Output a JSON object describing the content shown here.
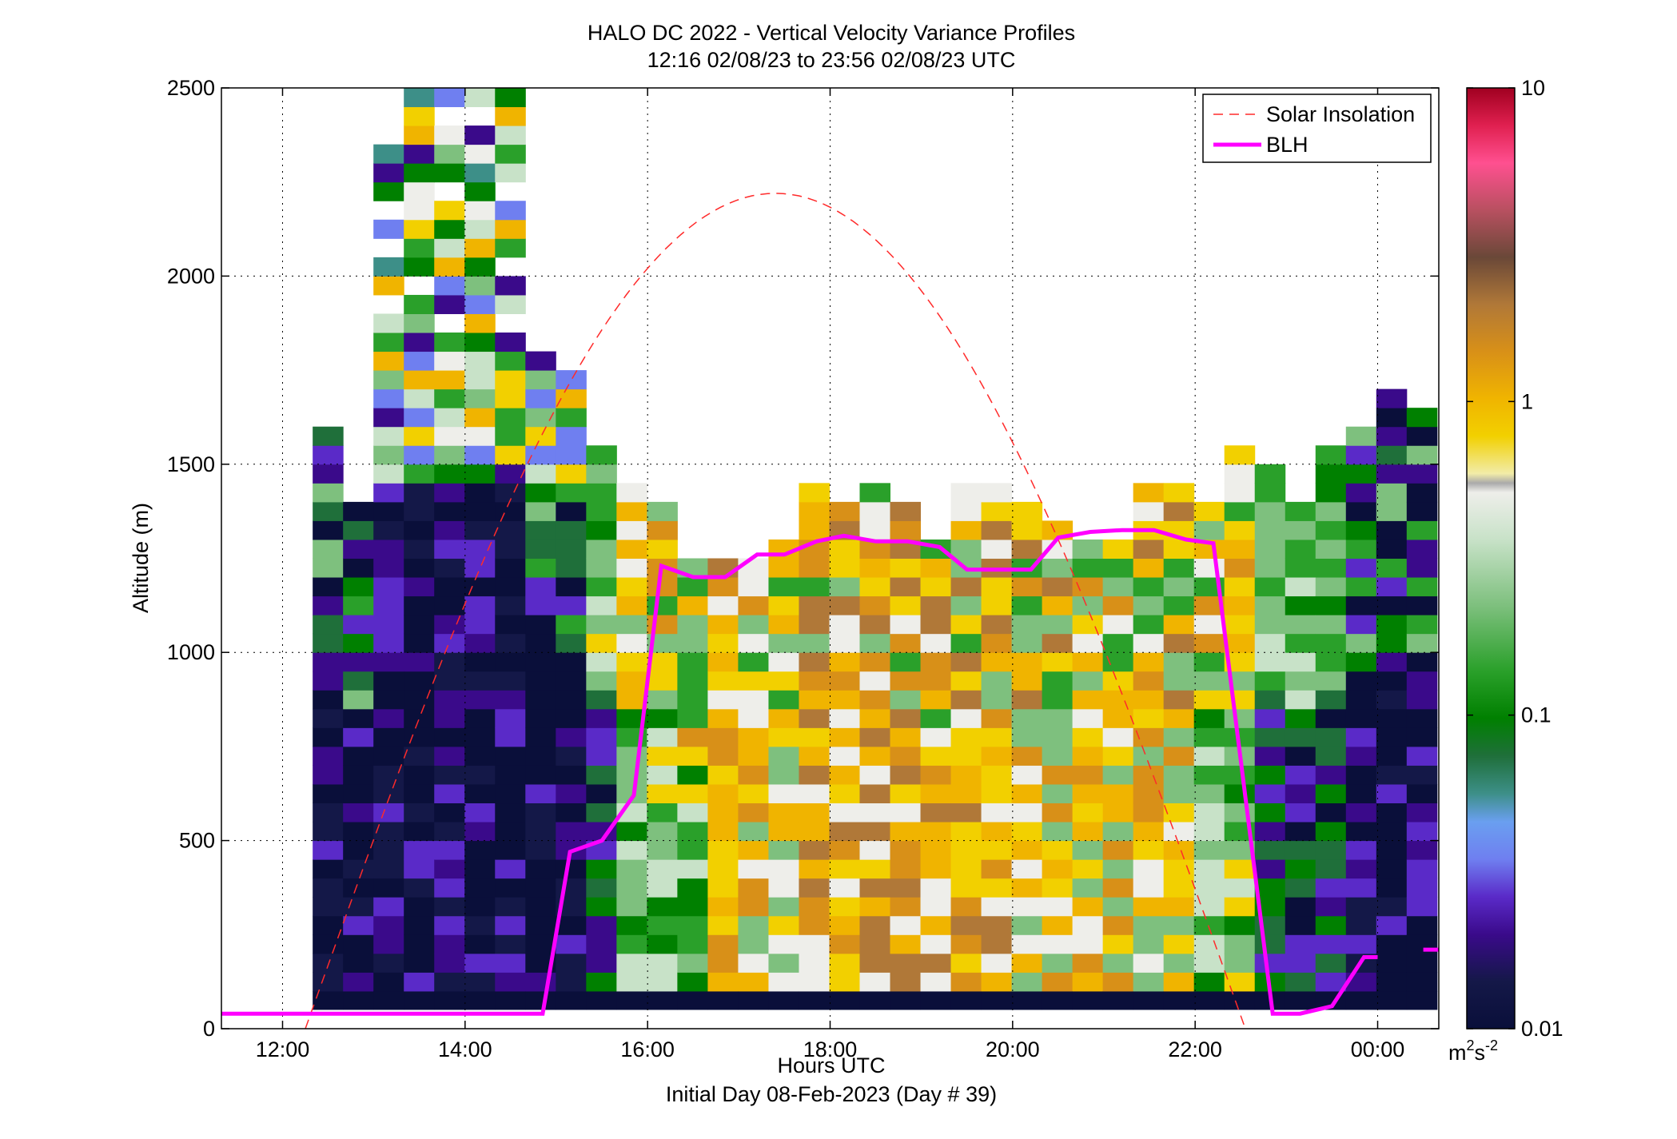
{
  "title_line1": "HALO DC 2022 - Vertical Velocity Variance Profiles",
  "title_line2": "12:16 02/08/23 to 23:56 02/08/23  UTC",
  "xlabel": "Hours UTC",
  "subtitle": "Initial Day 08-Feb-2023 (Day # 39)",
  "ylabel": "Altitude (m)",
  "colorbar_unit_base": "m",
  "colorbar_unit_sup1": "2",
  "colorbar_unit_mid": "s",
  "colorbar_unit_sup2": "-2",
  "legend": {
    "solar": "Solar Insolation",
    "blh": "BLH",
    "solar_color": "#ff2a2a",
    "blh_color": "#ff00ff"
  },
  "chart_data": {
    "type": "heatmap",
    "x_axis": {
      "label": "Hours UTC",
      "range_hours": [
        11.33,
        24.67
      ],
      "ticks": [
        {
          "value": 12,
          "label": "12:00"
        },
        {
          "value": 14,
          "label": "14:00"
        },
        {
          "value": 16,
          "label": "16:00"
        },
        {
          "value": 18,
          "label": "18:00"
        },
        {
          "value": 20,
          "label": "20:00"
        },
        {
          "value": 22,
          "label": "22:00"
        },
        {
          "value": 24,
          "label": "00:00"
        }
      ],
      "grid": true
    },
    "y_axis": {
      "label": "Altitude (m)",
      "range": [
        0,
        2500
      ],
      "ticks": [
        {
          "value": 0,
          "label": "0"
        },
        {
          "value": 500,
          "label": "500"
        },
        {
          "value": 1000,
          "label": "1000"
        },
        {
          "value": 1500,
          "label": "1500"
        },
        {
          "value": 2000,
          "label": "2000"
        },
        {
          "value": 2500,
          "label": "2500"
        }
      ],
      "grid": true
    },
    "colorbar": {
      "scale": "log",
      "range": [
        0.01,
        10
      ],
      "ticks": [
        {
          "value": 0.01,
          "label": "0.01"
        },
        {
          "value": 0.1,
          "label": "0.1"
        },
        {
          "value": 1,
          "label": "1"
        },
        {
          "value": 10,
          "label": "10"
        }
      ]
    },
    "heatmap": {
      "bin_hours": 0.333,
      "bin_altitude_m": 50,
      "first_bin_hour": 12.33,
      "first_bin_altitude_m": 100,
      "altitude_bins": 48,
      "columns": [
        {
          "top": 1580,
          "base_class": 0
        },
        {
          "top": 1380,
          "base_class": 0
        },
        {
          "top": 2340,
          "base_class": 0
        },
        {
          "top": 2500,
          "base_class": 0
        },
        {
          "top": 2500,
          "base_class": 0
        },
        {
          "top": 2500,
          "base_class": 0
        },
        {
          "top": 2500,
          "base_class": 0
        },
        {
          "top": 1780,
          "base_class": 0
        },
        {
          "top": 1720,
          "base_class": 0
        },
        {
          "top": 1530,
          "base_class": 1
        },
        {
          "top": 1450,
          "base_class": 2
        },
        {
          "top": 1380,
          "base_class": 2
        },
        {
          "top": 1240,
          "base_class": 2
        },
        {
          "top": 1240,
          "base_class": 3
        },
        {
          "top": 1240,
          "base_class": 3
        },
        {
          "top": 1290,
          "base_class": 3
        },
        {
          "top": 1430,
          "base_class": 4
        },
        {
          "top": 1380,
          "base_class": 4
        },
        {
          "top": 1430,
          "base_class": 4
        },
        {
          "top": 1380,
          "base_class": 4
        },
        {
          "top": 1290,
          "base_class": 4
        },
        {
          "top": 1430,
          "base_class": 4
        },
        {
          "top": 1430,
          "base_class": 4
        },
        {
          "top": 1380,
          "base_class": 3
        },
        {
          "top": 1340,
          "base_class": 3
        },
        {
          "top": 1290,
          "base_class": 3
        },
        {
          "top": 1290,
          "base_class": 3
        },
        {
          "top": 1430,
          "base_class": 3
        },
        {
          "top": 1430,
          "base_class": 3
        },
        {
          "top": 1380,
          "base_class": 2
        },
        {
          "top": 1530,
          "base_class": 2
        },
        {
          "top": 1480,
          "base_class": 1
        },
        {
          "top": 1380,
          "base_class": 1
        },
        {
          "top": 1530,
          "base_class": 1
        },
        {
          "top": 1580,
          "base_class": 0
        },
        {
          "top": 1680,
          "base_class": 0
        },
        {
          "top": 1630,
          "base_class": 0
        }
      ]
    },
    "series": [
      {
        "name": "BLH",
        "type": "line",
        "points": [
          [
            11.33,
            40
          ],
          [
            14.85,
            40
          ],
          [
            15.15,
            470
          ],
          [
            15.5,
            500
          ],
          [
            15.85,
            620
          ],
          [
            16.15,
            1230
          ],
          [
            16.5,
            1200
          ],
          [
            16.85,
            1200
          ],
          [
            17.2,
            1260
          ],
          [
            17.5,
            1260
          ],
          [
            17.85,
            1295
          ],
          [
            18.15,
            1310
          ],
          [
            18.5,
            1295
          ],
          [
            18.85,
            1295
          ],
          [
            19.2,
            1280
          ],
          [
            19.5,
            1220
          ],
          [
            19.85,
            1220
          ],
          [
            20.2,
            1220
          ],
          [
            20.5,
            1305
          ],
          [
            20.85,
            1320
          ],
          [
            21.2,
            1325
          ],
          [
            21.55,
            1325
          ],
          [
            21.9,
            1300
          ],
          [
            22.2,
            1290
          ],
          [
            22.85,
            40
          ],
          [
            23.15,
            40
          ],
          [
            23.5,
            60
          ],
          [
            23.85,
            190
          ],
          [
            24.0,
            190
          ]
        ],
        "gap_segment": [
          [
            24.5,
            210
          ],
          [
            24.67,
            210
          ]
        ]
      },
      {
        "name": "Solar Insolation",
        "type": "line",
        "style": "dashed",
        "peak_hour": 17.45,
        "peak_altitude_m": 2220,
        "zero_crossings_hours": [
          12.25,
          22.55
        ]
      }
    ]
  }
}
